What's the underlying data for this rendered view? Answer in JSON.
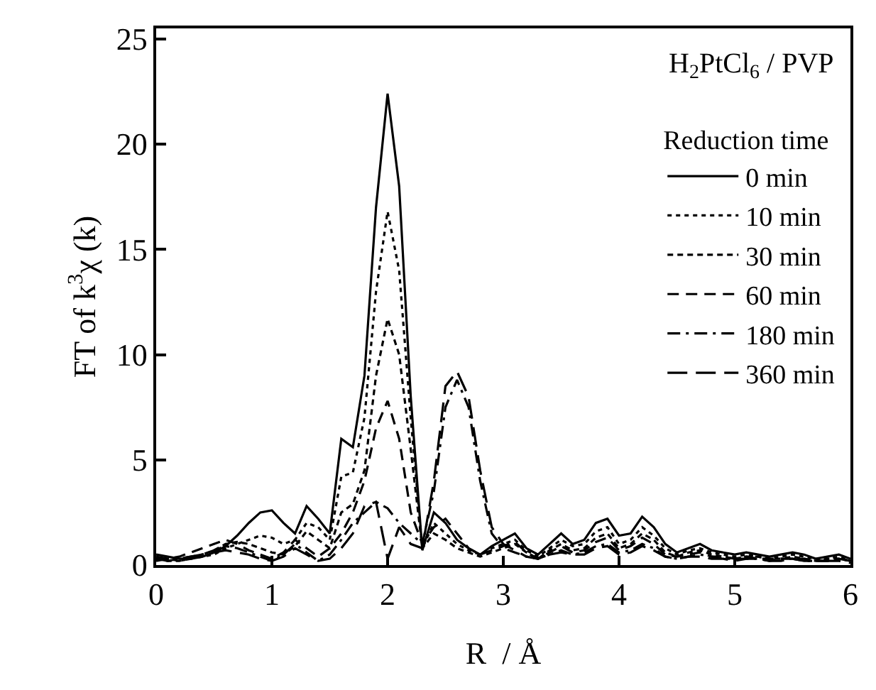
{
  "chart_data": {
    "type": "line",
    "xlabel": "R  / Å",
    "ylabel": "FT of k$^{3}$χ (k)",
    "legend_title": "Reduction time",
    "annotations": [
      "H$_{2}$PtCl$_{6}$ / PVP"
    ],
    "x": [
      0,
      0.1,
      0.2,
      0.3,
      0.4,
      0.5,
      0.6,
      0.7,
      0.8,
      0.9,
      1.0,
      1.1,
      1.2,
      1.3,
      1.4,
      1.5,
      1.6,
      1.7,
      1.8,
      1.9,
      2.0,
      2.1,
      2.2,
      2.3,
      2.4,
      2.5,
      2.6,
      2.7,
      2.8,
      2.9,
      3.0,
      3.1,
      3.2,
      3.3,
      3.4,
      3.5,
      3.6,
      3.7,
      3.8,
      3.9,
      4.0,
      4.1,
      4.2,
      4.3,
      4.4,
      4.5,
      4.6,
      4.7,
      4.8,
      4.9,
      5.0,
      5.1,
      5.2,
      5.3,
      5.4,
      5.5,
      5.6,
      5.7,
      5.8,
      5.9,
      6.0
    ],
    "series": [
      {
        "name": "0 min",
        "color": "#000000",
        "line_style": "solid",
        "values": [
          0.5,
          0.4,
          0.3,
          0.3,
          0.4,
          0.6,
          0.9,
          1.4,
          2.0,
          2.5,
          2.6,
          2.0,
          1.5,
          2.8,
          2.2,
          1.5,
          6.0,
          5.6,
          9,
          17,
          22.4,
          18,
          8,
          0.7,
          2.5,
          2.0,
          1.2,
          0.8,
          0.5,
          0.9,
          1.2,
          1.5,
          0.8,
          0.5,
          1.0,
          1.5,
          1.0,
          1.2,
          2.0,
          2.2,
          1.4,
          1.5,
          2.3,
          1.8,
          1.0,
          0.6,
          0.8,
          1.0,
          0.7,
          0.6,
          0.5,
          0.6,
          0.5,
          0.4,
          0.5,
          0.6,
          0.5,
          0.3,
          0.4,
          0.5,
          0.3
        ]
      },
      {
        "name": "10 min",
        "color": "#000000",
        "line_style": "dotted",
        "values": [
          0.3,
          0.3,
          0.2,
          0.3,
          0.4,
          0.5,
          0.8,
          1.0,
          1.2,
          1.4,
          1.3,
          1.0,
          1.2,
          2.0,
          1.8,
          1.2,
          4.2,
          4.4,
          7,
          13,
          16.8,
          14,
          7,
          0.8,
          2.0,
          1.5,
          1.0,
          0.7,
          0.5,
          0.8,
          1.0,
          1.2,
          0.7,
          0.4,
          0.8,
          1.2,
          0.9,
          1.0,
          1.6,
          1.8,
          1.0,
          1.2,
          1.8,
          1.4,
          0.8,
          0.5,
          0.7,
          0.8,
          0.6,
          0.5,
          0.4,
          0.5,
          0.4,
          0.3,
          0.4,
          0.5,
          0.4,
          0.3,
          0.3,
          0.4,
          0.2
        ]
      },
      {
        "name": "30 min",
        "color": "#000000",
        "line_style": "dashed",
        "values": [
          0.3,
          0.2,
          0.2,
          0.3,
          0.5,
          0.7,
          1.0,
          1.1,
          1.0,
          0.8,
          0.6,
          0.5,
          0.9,
          1.6,
          1.2,
          0.8,
          2.5,
          2.9,
          4.5,
          9,
          11.7,
          10,
          5.5,
          0.8,
          1.5,
          1.2,
          0.8,
          0.6,
          0.4,
          0.6,
          0.8,
          1.0,
          0.6,
          0.3,
          0.7,
          1.0,
          0.7,
          0.8,
          1.3,
          1.5,
          0.8,
          1.0,
          1.5,
          1.2,
          0.6,
          0.4,
          0.6,
          0.7,
          0.5,
          0.4,
          0.3,
          0.4,
          0.4,
          0.3,
          0.3,
          0.4,
          0.3,
          0.2,
          0.3,
          0.3,
          0.2
        ]
      },
      {
        "name": "60 min",
        "color": "#000000",
        "line_style": "long dashed",
        "values": [
          0.2,
          0.3,
          0.4,
          0.6,
          0.8,
          1.0,
          1.2,
          1.0,
          0.7,
          0.5,
          0.3,
          0.6,
          1.2,
          0.8,
          0.4,
          0.8,
          1.5,
          2.5,
          4,
          6.5,
          7.8,
          6,
          2.5,
          1.0,
          1.8,
          2.2,
          1.5,
          0.8,
          0.5,
          0.7,
          0.9,
          1.1,
          0.6,
          0.3,
          0.6,
          0.9,
          0.6,
          0.7,
          1.1,
          1.3,
          0.7,
          0.9,
          1.3,
          1.0,
          0.5,
          0.4,
          0.5,
          0.6,
          0.4,
          0.4,
          0.3,
          0.4,
          0.3,
          0.3,
          0.3,
          0.3,
          0.3,
          0.2,
          0.2,
          0.3,
          0.2
        ]
      },
      {
        "name": "180 min",
        "color": "#000000",
        "line_style": "dash-dot",
        "values": [
          0.4,
          0.3,
          0.3,
          0.4,
          0.5,
          0.7,
          0.9,
          0.8,
          0.6,
          0.4,
          0.2,
          0.5,
          1.0,
          0.6,
          0.2,
          0.5,
          1.2,
          2.0,
          2.5,
          3.0,
          2.7,
          2.0,
          1.5,
          1.0,
          3.5,
          7.5,
          8.8,
          7.5,
          4,
          1.5,
          0.8,
          0.6,
          0.4,
          0.3,
          0.5,
          0.7,
          0.5,
          0.6,
          0.9,
          1.0,
          0.6,
          0.7,
          1.0,
          0.8,
          0.4,
          0.3,
          0.4,
          0.5,
          0.4,
          0.3,
          0.3,
          0.3,
          0.3,
          0.2,
          0.3,
          0.3,
          0.2,
          0.2,
          0.2,
          0.3,
          0.2
        ]
      },
      {
        "name": "360 min",
        "color": "#000000",
        "line_style": "extra long dashed",
        "values": [
          0.3,
          0.2,
          0.3,
          0.4,
          0.5,
          0.6,
          0.7,
          0.6,
          0.5,
          0.3,
          0.2,
          0.4,
          0.8,
          0.5,
          0.2,
          0.3,
          0.8,
          1.5,
          2.8,
          3.0,
          0.3,
          1.8,
          1.0,
          0.8,
          4,
          8.5,
          9.2,
          8,
          4.5,
          1.8,
          1.0,
          0.7,
          0.4,
          0.3,
          0.5,
          0.6,
          0.5,
          0.5,
          0.8,
          0.9,
          0.5,
          0.6,
          0.9,
          0.7,
          0.4,
          0.3,
          0.4,
          0.4,
          0.3,
          0.3,
          0.2,
          0.3,
          0.3,
          0.2,
          0.2,
          0.3,
          0.2,
          0.2,
          0.2,
          0.2,
          0.1
        ]
      }
    ],
    "xlim": [
      0,
      6
    ],
    "xticks": [
      0,
      1,
      2,
      3,
      4,
      5,
      6
    ],
    "ylim": [
      0,
      25.5
    ],
    "yticks": [
      0,
      5,
      10,
      15,
      20,
      25
    ],
    "legend": "top right"
  }
}
